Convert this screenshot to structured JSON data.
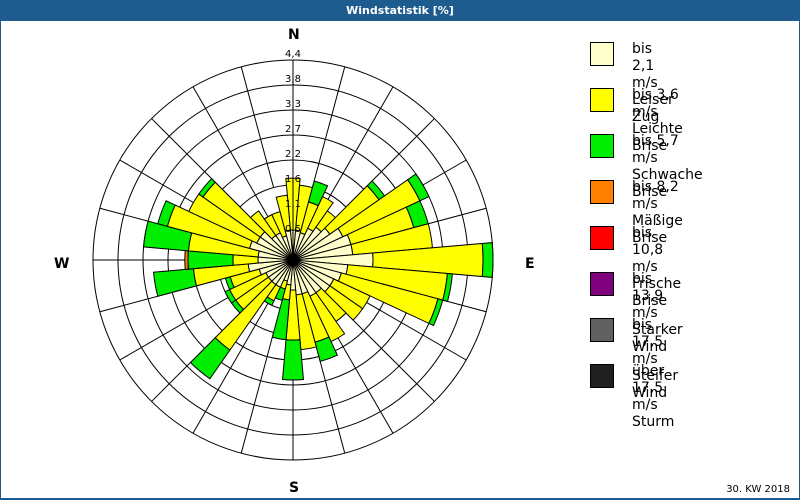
{
  "header": {
    "title": "Windstatistik [%]"
  },
  "footer": {
    "period": "30. KW 2018"
  },
  "directions": {
    "n": "N",
    "e": "E",
    "s": "S",
    "w": "W"
  },
  "legend": [
    {
      "range": "bis 2,1 m/s",
      "name": "Leiser Zug",
      "color": "#ffffcc"
    },
    {
      "range": "bis 3,6 m/s",
      "name": "Leichte Brise",
      "color": "#ffff00"
    },
    {
      "range": "bis 5,7 m/s",
      "name": "Schwache Brise",
      "color": "#00ee00"
    },
    {
      "range": "bis 8,2 m/s",
      "name": "Mäßige Brise",
      "color": "#ff8000"
    },
    {
      "range": "bis 10,8 m/s",
      "name": "Frische Brise",
      "color": "#ff0000"
    },
    {
      "range": "bis 13,9 m/s",
      "name": "Starker Wind",
      "color": "#800080"
    },
    {
      "range": "bis 17,5 m/s",
      "name": "Steifer Wind",
      "color": "#606060"
    },
    {
      "range": "über 17,5 m/s",
      "name": "Sturm",
      "color": "#202020"
    }
  ],
  "chart_data": {
    "type": "polar-stacked-bar",
    "title": "Windstatistik [%]",
    "subtitle": "30. KW 2018",
    "radial_ticks": [
      "0,5",
      "1,1",
      "1,6",
      "2,2",
      "2,7",
      "3,3",
      "3,8",
      "4,4"
    ],
    "rmax": 4.4,
    "sector_width_deg": 10,
    "angles_deg": [
      0,
      10,
      20,
      30,
      40,
      50,
      60,
      70,
      80,
      90,
      100,
      110,
      120,
      130,
      140,
      150,
      160,
      170,
      180,
      190,
      200,
      210,
      220,
      230,
      240,
      250,
      260,
      270,
      280,
      290,
      300,
      310,
      320,
      330,
      340,
      350
    ],
    "series": [
      {
        "name": "bis 2,1 m/s Leiser Zug",
        "values": [
          0.66,
          0.66,
          0.62,
          0.77,
          0.88,
          0.99,
          1.21,
          1.32,
          1.32,
          1.76,
          1.21,
          1.1,
          0.99,
          0.99,
          0.88,
          0.88,
          0.77,
          0.77,
          0.66,
          0.55,
          0.48,
          0.66,
          0.66,
          0.66,
          0.66,
          0.77,
          0.99,
          0.77,
          0.77,
          0.99,
          0.88,
          0.88,
          0.66,
          0.66,
          0.55,
          0.66
        ]
      },
      {
        "name": "bis 3,6 m/s Leichte Brise",
        "values": [
          1.14,
          0.99,
          0.7,
          0.77,
          0.44,
          1.32,
          1.87,
          1.43,
          1.76,
          2.42,
          2.2,
          2.2,
          0.88,
          0.88,
          0.77,
          1.1,
          1.1,
          1.21,
          1.1,
          0.33,
          0.18,
          0.33,
          1.76,
          0.88,
          0.88,
          0.66,
          1.21,
          0.55,
          1.54,
          1.87,
          1.65,
          1.54,
          0.66,
          0.44,
          0.55,
          0.77
        ]
      },
      {
        "name": "bis 5,7 m/s Schwache Brise",
        "values": [
          0,
          0,
          0.48,
          0,
          0,
          0.15,
          0.22,
          0.33,
          0,
          0.22,
          0.11,
          0.11,
          0,
          0,
          0,
          0,
          0.44,
          0,
          0.88,
          0.88,
          0.26,
          0.11,
          0.77,
          0.11,
          0.11,
          0.11,
          0.88,
          0.99,
          0.99,
          0.22,
          0,
          0.11,
          0,
          0,
          0,
          0
        ]
      },
      {
        "name": "bis 8,2 m/s Mäßige Brise",
        "values": [
          0,
          0,
          0,
          0,
          0,
          0,
          0,
          0,
          0,
          0,
          0,
          0,
          0,
          0,
          0,
          0,
          0,
          0,
          0,
          0,
          0,
          0,
          0,
          0,
          0,
          0,
          0,
          0.07,
          0,
          0,
          0,
          0,
          0,
          0,
          0,
          0
        ]
      },
      {
        "name": "bis 10,8 m/s Frische Brise",
        "values": [
          0,
          0,
          0,
          0,
          0,
          0,
          0,
          0,
          0,
          0,
          0,
          0,
          0,
          0,
          0,
          0,
          0,
          0,
          0,
          0,
          0,
          0,
          0,
          0,
          0,
          0,
          0,
          0,
          0,
          0,
          0,
          0,
          0,
          0,
          0,
          0
        ]
      },
      {
        "name": "bis 13,9 m/s Starker Wind",
        "values": [
          0,
          0,
          0,
          0,
          0,
          0,
          0,
          0,
          0,
          0,
          0,
          0,
          0,
          0,
          0,
          0,
          0,
          0,
          0,
          0,
          0,
          0,
          0,
          0,
          0,
          0,
          0,
          0,
          0,
          0,
          0,
          0,
          0,
          0,
          0,
          0
        ]
      },
      {
        "name": "bis 17,5 m/s Steifer Wind",
        "values": [
          0,
          0,
          0,
          0,
          0,
          0,
          0,
          0,
          0,
          0,
          0,
          0,
          0,
          0,
          0,
          0,
          0,
          0,
          0,
          0,
          0,
          0,
          0,
          0,
          0,
          0,
          0,
          0,
          0,
          0,
          0,
          0,
          0,
          0,
          0,
          0
        ]
      },
      {
        "name": "über 17,5 m/s Sturm",
        "values": [
          0,
          0,
          0,
          0,
          0,
          0,
          0,
          0,
          0,
          0,
          0,
          0,
          0,
          0,
          0,
          0,
          0,
          0,
          0,
          0,
          0,
          0,
          0,
          0,
          0,
          0,
          0,
          0,
          0,
          0,
          0,
          0,
          0,
          0,
          0,
          0
        ]
      }
    ],
    "colors": [
      "#ffffcc",
      "#ffff00",
      "#00ee00",
      "#ff8000",
      "#ff0000",
      "#800080",
      "#606060",
      "#202020"
    ]
  }
}
